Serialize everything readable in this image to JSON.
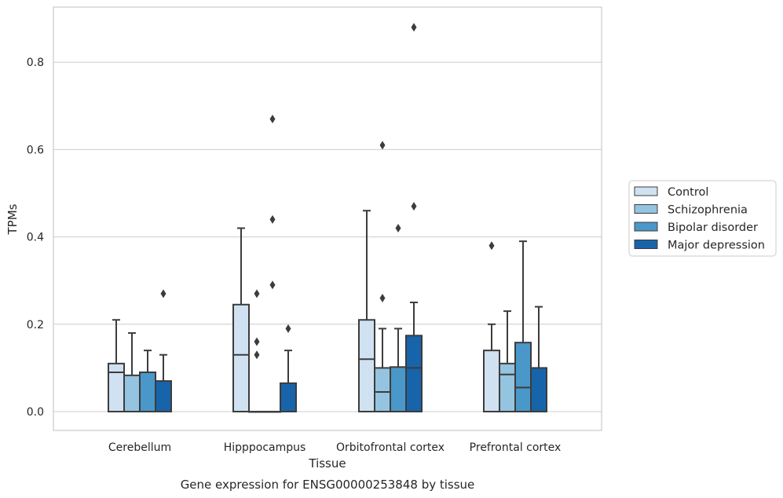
{
  "caption": "Gene expression for ENSG00000253848 by tissue",
  "colors": {
    "Control": "#d0e1f2",
    "Schizophrenia": "#94c4df",
    "Bipolar disorder": "#4a98c9",
    "Major depression": "#1764ab"
  },
  "chart_data": {
    "type": "box",
    "xlabel": "Tissue",
    "ylabel": "TPMs",
    "ylim": [
      -0.042,
      0.925
    ],
    "yticks": [
      "0.0",
      "0.2",
      "0.4",
      "0.6",
      "0.8"
    ],
    "grid": "horizontal",
    "legend_position": "right-outside",
    "categories": [
      "Cerebellum",
      "Hipppocampus",
      "Orbitofrontal cortex",
      "Prefrontal cortex"
    ],
    "series": [
      {
        "name": "Control",
        "boxes": [
          {
            "min": 0.0,
            "q1": 0.0,
            "median": 0.09,
            "q3": 0.11,
            "max": 0.21,
            "outliers": []
          },
          {
            "min": 0.0,
            "q1": 0.0,
            "median": 0.13,
            "q3": 0.245,
            "max": 0.42,
            "outliers": []
          },
          {
            "min": 0.0,
            "q1": 0.0,
            "median": 0.12,
            "q3": 0.21,
            "max": 0.46,
            "outliers": []
          },
          {
            "min": 0.0,
            "q1": 0.0,
            "median": 0.0,
            "q3": 0.14,
            "max": 0.2,
            "outliers": [
              0.38
            ]
          }
        ]
      },
      {
        "name": "Schizophrenia",
        "boxes": [
          {
            "min": 0.0,
            "q1": 0.0,
            "median": 0.0,
            "q3": 0.083,
            "max": 0.18,
            "outliers": []
          },
          {
            "min": 0.0,
            "q1": 0.0,
            "median": 0.0,
            "q3": 0.0,
            "max": 0.0,
            "outliers": [
              0.13,
              0.16,
              0.27
            ]
          },
          {
            "min": 0.0,
            "q1": 0.0,
            "median": 0.045,
            "q3": 0.1,
            "max": 0.19,
            "outliers": [
              0.26,
              0.61
            ]
          },
          {
            "min": 0.0,
            "q1": 0.0,
            "median": 0.085,
            "q3": 0.11,
            "max": 0.23,
            "outliers": []
          }
        ]
      },
      {
        "name": "Bipolar disorder",
        "boxes": [
          {
            "min": 0.0,
            "q1": 0.0,
            "median": 0.0,
            "q3": 0.09,
            "max": 0.14,
            "outliers": []
          },
          {
            "min": 0.0,
            "q1": 0.0,
            "median": 0.0,
            "q3": 0.0,
            "max": 0.0,
            "outliers": [
              0.29,
              0.44,
              0.67
            ]
          },
          {
            "min": 0.0,
            "q1": 0.0,
            "median": 0.0,
            "q3": 0.102,
            "max": 0.19,
            "outliers": [
              0.42
            ]
          },
          {
            "min": 0.0,
            "q1": 0.0,
            "median": 0.055,
            "q3": 0.158,
            "max": 0.39,
            "outliers": []
          }
        ]
      },
      {
        "name": "Major depression",
        "boxes": [
          {
            "min": 0.0,
            "q1": 0.0,
            "median": 0.0,
            "q3": 0.07,
            "max": 0.13,
            "outliers": [
              0.27
            ]
          },
          {
            "min": 0.0,
            "q1": 0.0,
            "median": 0.0,
            "q3": 0.065,
            "max": 0.14,
            "outliers": [
              0.19
            ]
          },
          {
            "min": 0.0,
            "q1": 0.0,
            "median": 0.1,
            "q3": 0.174,
            "max": 0.25,
            "outliers": [
              0.47,
              0.88
            ]
          },
          {
            "min": 0.0,
            "q1": 0.0,
            "median": 0.0,
            "q3": 0.1,
            "max": 0.24,
            "outliers": []
          }
        ]
      }
    ]
  }
}
